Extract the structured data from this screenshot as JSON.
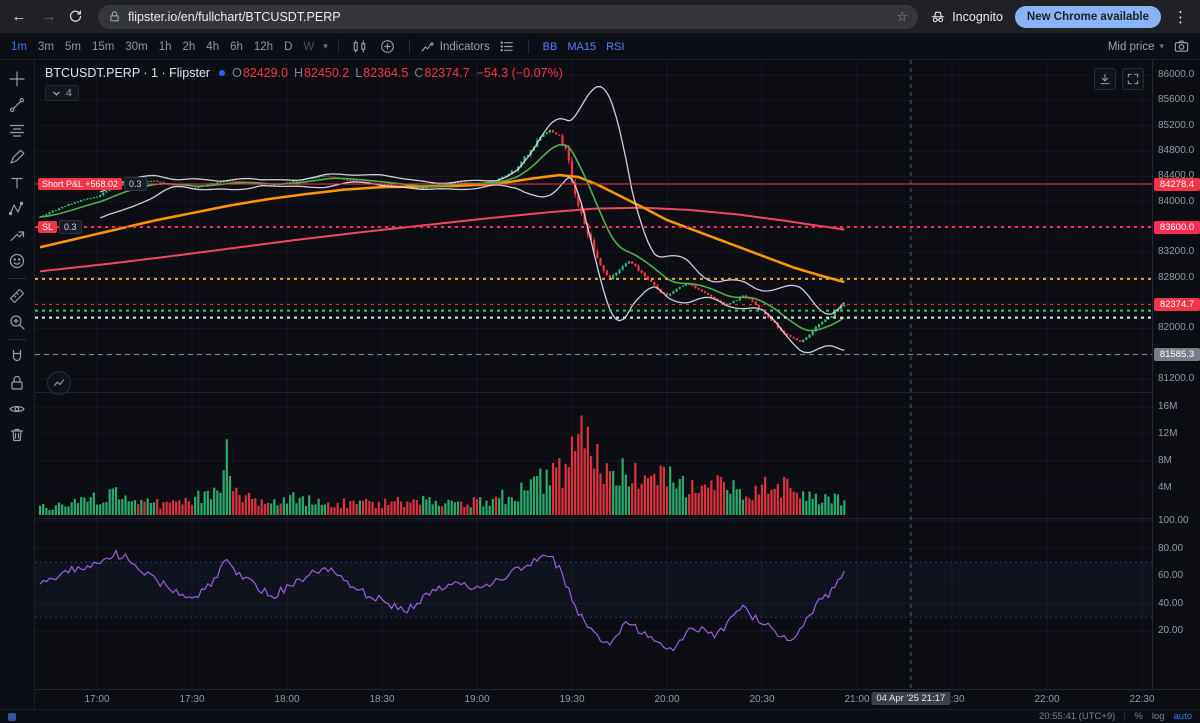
{
  "browser": {
    "url": "flipster.io/en/fullchart/BTCUSDT.PERP",
    "incognito_label": "Incognito",
    "update_button": "New Chrome available"
  },
  "toolbar": {
    "timeframes": [
      "1m",
      "3m",
      "5m",
      "15m",
      "30m",
      "1h",
      "2h",
      "4h",
      "6h",
      "12h",
      "D",
      "W"
    ],
    "active_timeframe": "1m",
    "disabled_timeframe": "W",
    "indicators_label": "Indicators",
    "indicator_chips": [
      "BB",
      "MA15",
      "RSI"
    ],
    "price_mode": "Mid price"
  },
  "left_toolbar": {
    "tools": [
      "crosshair",
      "trend-line",
      "fib-retracement",
      "brush",
      "text",
      "xabcd-pattern",
      "forecast",
      "emoji",
      "measure",
      "zoom-in",
      "magnet",
      "lock",
      "eye",
      "trash"
    ],
    "separators_after": [
      "emoji",
      "zoom-in"
    ]
  },
  "legend": {
    "title": "BTCUSDT.PERP · 1 · Flipster",
    "ohlc": {
      "o_label": "O",
      "o": "82429.0",
      "h_label": "H",
      "h": "82450.2",
      "l_label": "L",
      "l": "82364.5",
      "c_label": "C",
      "c": "82374.7",
      "change": "−54.3 (−0.07%)"
    },
    "collapsed_count": "4"
  },
  "trade_labels": {
    "pnl": {
      "text": "Short P&L +568.02",
      "qty": "0.3",
      "price": 84278.4
    },
    "sl": {
      "text": "SL",
      "qty": "0.3",
      "price": 83600.0
    }
  },
  "price_axis": {
    "ticks": [
      86000,
      85600,
      85200,
      84800,
      84400,
      84000,
      83200,
      82800,
      82000,
      81200
    ],
    "badges": [
      {
        "value": "84278.4",
        "price": 84278.4,
        "bg": "#f23645",
        "fg": "#ffffff"
      },
      {
        "value": "83600.0",
        "price": 83600.0,
        "bg": "#ff2d55",
        "fg": "#ffffff"
      },
      {
        "value": "82374.7",
        "price": 82374.7,
        "bg": "#f23645",
        "fg": "#ffffff"
      },
      {
        "value": "81585.3",
        "price": 81585.3,
        "bg": "#787e89",
        "fg": "#ffffff"
      }
    ]
  },
  "volume_axis": {
    "ticks": [
      16,
      12,
      8,
      4
    ]
  },
  "rsi_axis": {
    "ticks": [
      100,
      80,
      60,
      40,
      20
    ]
  },
  "time_axis": {
    "ticks": [
      {
        "m": 18,
        "label": "17:00"
      },
      {
        "m": 48,
        "label": "17:30"
      },
      {
        "m": 78,
        "label": "18:00"
      },
      {
        "m": 108,
        "label": "18:30"
      },
      {
        "m": 138,
        "label": "19:00"
      },
      {
        "m": 168,
        "label": "19:30"
      },
      {
        "m": 198,
        "label": "20:00"
      },
      {
        "m": 228,
        "label": "20:30"
      },
      {
        "m": 258,
        "label": "21:00"
      },
      {
        "m": 288,
        "label": "21:30"
      },
      {
        "m": 318,
        "label": "22:00"
      },
      {
        "m": 348,
        "label": "22:30"
      }
    ],
    "marker": {
      "m": 275,
      "label": "04 Apr '25 21:17"
    }
  },
  "status_bar": {
    "clock": "20:55:41 (UTC+9)",
    "percent": "%",
    "log": "log",
    "auto": "auto"
  },
  "chart_data": {
    "type": "candlestick",
    "symbol": "BTCUSDT.PERP",
    "interval_minutes": 1,
    "minutes": 255,
    "seed": 42,
    "price_range": [
      81200,
      86000
    ],
    "anchors_price": [
      [
        0,
        83760
      ],
      [
        6,
        83900
      ],
      [
        12,
        84010
      ],
      [
        18,
        84080
      ],
      [
        24,
        84250
      ],
      [
        30,
        84310
      ],
      [
        36,
        84330
      ],
      [
        42,
        84260
      ],
      [
        48,
        84210
      ],
      [
        54,
        84290
      ],
      [
        60,
        84330
      ],
      [
        66,
        84300
      ],
      [
        72,
        84250
      ],
      [
        78,
        84300
      ],
      [
        84,
        84360
      ],
      [
        90,
        84410
      ],
      [
        96,
        84350
      ],
      [
        102,
        84310
      ],
      [
        108,
        84280
      ],
      [
        114,
        84240
      ],
      [
        120,
        84210
      ],
      [
        126,
        84270
      ],
      [
        132,
        84310
      ],
      [
        138,
        84290
      ],
      [
        144,
        84330
      ],
      [
        150,
        84500
      ],
      [
        154,
        84760
      ],
      [
        158,
        85010
      ],
      [
        161,
        85130
      ],
      [
        164,
        85020
      ],
      [
        166,
        84830
      ],
      [
        168,
        84350
      ],
      [
        170,
        83950
      ],
      [
        172,
        83650
      ],
      [
        174,
        83350
      ],
      [
        177,
        83000
      ],
      [
        180,
        82780
      ],
      [
        183,
        82930
      ],
      [
        186,
        83060
      ],
      [
        189,
        82920
      ],
      [
        192,
        82760
      ],
      [
        195,
        82620
      ],
      [
        198,
        82520
      ],
      [
        201,
        82620
      ],
      [
        204,
        82710
      ],
      [
        207,
        82650
      ],
      [
        210,
        82560
      ],
      [
        213,
        82470
      ],
      [
        216,
        82370
      ],
      [
        219,
        82420
      ],
      [
        222,
        82520
      ],
      [
        225,
        82410
      ],
      [
        228,
        82270
      ],
      [
        231,
        82120
      ],
      [
        234,
        81960
      ],
      [
        237,
        81860
      ],
      [
        240,
        81790
      ],
      [
        243,
        81910
      ],
      [
        246,
        82060
      ],
      [
        249,
        82160
      ],
      [
        252,
        82300
      ],
      [
        254,
        82375
      ]
    ],
    "anchors_volume_m": [
      [
        0,
        1.2
      ],
      [
        10,
        1.6
      ],
      [
        20,
        2.6
      ],
      [
        25,
        3.2
      ],
      [
        30,
        2.0
      ],
      [
        40,
        1.5
      ],
      [
        48,
        2.2
      ],
      [
        55,
        3.5
      ],
      [
        58,
        5.0
      ],
      [
        59,
        13.5
      ],
      [
        60,
        5.5
      ],
      [
        62,
        3.0
      ],
      [
        70,
        2.0
      ],
      [
        80,
        2.4
      ],
      [
        90,
        2.0
      ],
      [
        100,
        1.6
      ],
      [
        110,
        1.8
      ],
      [
        120,
        2.1
      ],
      [
        130,
        1.6
      ],
      [
        140,
        2.0
      ],
      [
        148,
        2.8
      ],
      [
        152,
        3.6
      ],
      [
        156,
        4.5
      ],
      [
        160,
        6.0
      ],
      [
        163,
        5.5
      ],
      [
        166,
        7.0
      ],
      [
        169,
        9.0
      ],
      [
        171,
        11.0
      ],
      [
        173,
        9.5
      ],
      [
        175,
        8.0
      ],
      [
        177,
        7.0
      ],
      [
        180,
        6.0
      ],
      [
        183,
        5.0
      ],
      [
        186,
        7.5
      ],
      [
        189,
        5.0
      ],
      [
        192,
        4.0
      ],
      [
        195,
        5.0
      ],
      [
        198,
        5.5
      ],
      [
        201,
        4.0
      ],
      [
        204,
        4.5
      ],
      [
        207,
        3.2
      ],
      [
        210,
        3.8
      ],
      [
        213,
        4.5
      ],
      [
        216,
        5.5
      ],
      [
        219,
        3.8
      ],
      [
        222,
        3.0
      ],
      [
        225,
        3.6
      ],
      [
        228,
        4.5
      ],
      [
        231,
        5.5
      ],
      [
        234,
        4.5
      ],
      [
        237,
        3.6
      ],
      [
        240,
        3.2
      ],
      [
        243,
        2.8
      ],
      [
        246,
        2.4
      ],
      [
        249,
        2.0
      ],
      [
        252,
        2.4
      ],
      [
        254,
        2.0
      ]
    ],
    "anchors_rsi": [
      [
        0,
        56
      ],
      [
        6,
        61
      ],
      [
        12,
        66
      ],
      [
        18,
        68
      ],
      [
        24,
        76
      ],
      [
        28,
        72
      ],
      [
        32,
        64
      ],
      [
        36,
        58
      ],
      [
        40,
        52
      ],
      [
        44,
        48
      ],
      [
        48,
        44
      ],
      [
        52,
        50
      ],
      [
        56,
        60
      ],
      [
        59,
        72
      ],
      [
        62,
        62
      ],
      [
        66,
        56
      ],
      [
        70,
        50
      ],
      [
        74,
        46
      ],
      [
        78,
        52
      ],
      [
        84,
        60
      ],
      [
        90,
        66
      ],
      [
        96,
        58
      ],
      [
        100,
        50
      ],
      [
        104,
        46
      ],
      [
        108,
        42
      ],
      [
        112,
        38
      ],
      [
        116,
        36
      ],
      [
        120,
        42
      ],
      [
        126,
        50
      ],
      [
        132,
        56
      ],
      [
        138,
        50
      ],
      [
        144,
        56
      ],
      [
        150,
        64
      ],
      [
        156,
        70
      ],
      [
        161,
        74
      ],
      [
        164,
        66
      ],
      [
        166,
        55
      ],
      [
        168,
        44
      ],
      [
        170,
        34
      ],
      [
        172,
        26
      ],
      [
        174,
        20
      ],
      [
        177,
        14
      ],
      [
        180,
        11
      ],
      [
        183,
        20
      ],
      [
        186,
        27
      ],
      [
        189,
        21
      ],
      [
        192,
        16
      ],
      [
        195,
        12
      ],
      [
        198,
        8
      ],
      [
        200,
        6
      ],
      [
        203,
        16
      ],
      [
        206,
        24
      ],
      [
        210,
        19
      ],
      [
        213,
        15
      ],
      [
        216,
        22
      ],
      [
        219,
        30
      ],
      [
        222,
        36
      ],
      [
        225,
        31
      ],
      [
        228,
        26
      ],
      [
        231,
        22
      ],
      [
        234,
        17
      ],
      [
        237,
        14
      ],
      [
        240,
        20
      ],
      [
        243,
        31
      ],
      [
        246,
        41
      ],
      [
        249,
        46
      ],
      [
        252,
        56
      ],
      [
        254,
        61
      ]
    ],
    "ma_orange": [
      [
        0,
        83280
      ],
      [
        12,
        83420
      ],
      [
        24,
        83560
      ],
      [
        36,
        83700
      ],
      [
        48,
        83820
      ],
      [
        60,
        83940
      ],
      [
        72,
        84040
      ],
      [
        84,
        84120
      ],
      [
        96,
        84190
      ],
      [
        108,
        84230
      ],
      [
        120,
        84240
      ],
      [
        132,
        84250
      ],
      [
        144,
        84280
      ],
      [
        156,
        84370
      ],
      [
        164,
        84420
      ],
      [
        170,
        84390
      ],
      [
        176,
        84270
      ],
      [
        182,
        84120
      ],
      [
        190,
        83920
      ],
      [
        198,
        83710
      ],
      [
        206,
        83560
      ],
      [
        214,
        83410
      ],
      [
        222,
        83260
      ],
      [
        230,
        83110
      ],
      [
        238,
        82960
      ],
      [
        246,
        82840
      ],
      [
        254,
        82730
      ]
    ],
    "ma_red": [
      [
        0,
        82900
      ],
      [
        20,
        83010
      ],
      [
        40,
        83130
      ],
      [
        60,
        83260
      ],
      [
        80,
        83390
      ],
      [
        100,
        83510
      ],
      [
        120,
        83620
      ],
      [
        140,
        83730
      ],
      [
        160,
        83830
      ],
      [
        175,
        83890
      ],
      [
        190,
        83905
      ],
      [
        205,
        83870
      ],
      [
        220,
        83800
      ],
      [
        235,
        83700
      ],
      [
        245,
        83625
      ],
      [
        254,
        83560
      ]
    ],
    "bb": {
      "period": 20,
      "mult": 2
    },
    "ema_period": 15,
    "rsi_levels": [
      70,
      30
    ],
    "hlines": [
      {
        "name": "short-entry",
        "price": 84278.4,
        "style": "solid",
        "color": "#f23645",
        "width": 1
      },
      {
        "name": "stop-loss",
        "price": 83600.0,
        "style": "dotted",
        "color": "#ff2d55",
        "width": 2
      },
      {
        "name": "level-yellow",
        "price": 82780.0,
        "style": "dotted",
        "color": "#f0a732",
        "width": 2
      },
      {
        "name": "level-green",
        "price": 82280.0,
        "style": "dotted",
        "color": "#38c463",
        "width": 2
      },
      {
        "name": "level-white",
        "price": 82170.0,
        "style": "dotted",
        "color": "#e8eaf0",
        "width": 2
      },
      {
        "name": "bb-low",
        "price": 81585.3,
        "style": "dashed",
        "color": "#8b919e",
        "width": 1
      },
      {
        "name": "last-price",
        "price": 82374.7,
        "style": "dotted",
        "color": "#f23645",
        "width": 1
      }
    ],
    "vline": {
      "minute": 275,
      "color": "rgba(165,175,195,0.5)"
    },
    "colors": {
      "up": "#2ebd74",
      "down": "#f23645",
      "bb": "rgba(225,228,236,0.9)",
      "ema": "#4caf50",
      "ma_orange": "#ff9800",
      "ma_red": "#ef4860",
      "rsi": "#9b5de0",
      "grid": "rgba(151,158,175,0.08)",
      "separator": "rgba(151,158,175,0.16)",
      "rsi_fill": "rgba(76,110,245,0.05)",
      "rsi_level": "rgba(76,110,245,0.45)"
    }
  }
}
